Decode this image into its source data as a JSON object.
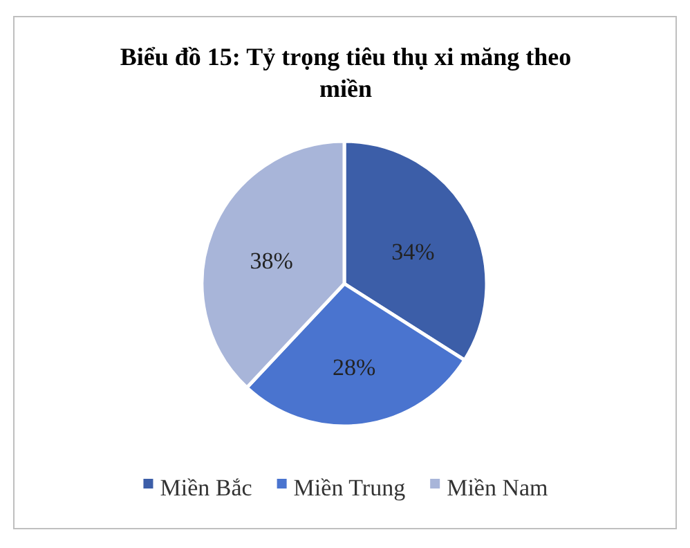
{
  "chart_data": {
    "type": "pie",
    "title": "Biểu đồ 15: Tỷ trọng tiêu thụ xi măng theo miền",
    "categories": [
      "Miền Bắc",
      "Miền Trung",
      "Miền Nam"
    ],
    "values": [
      34,
      28,
      38
    ],
    "value_labels": [
      "34%",
      "28%",
      "38%"
    ],
    "colors": [
      "#3c5ea8",
      "#4a74cf",
      "#a8b5d9"
    ],
    "legend": "bottom"
  }
}
